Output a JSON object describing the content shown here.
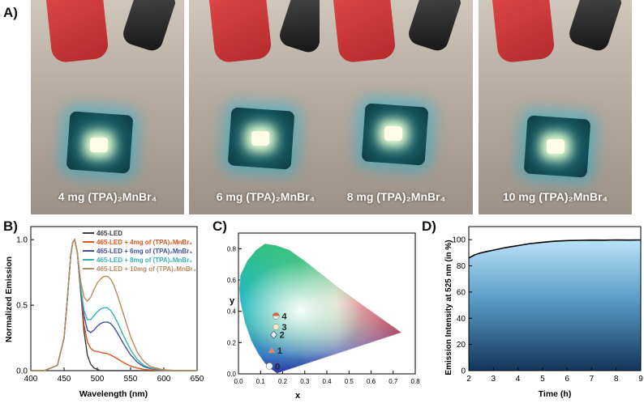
{
  "panel_labels": {
    "a": "A)",
    "b": "B)",
    "c": "C)",
    "d": "D)"
  },
  "photos": [
    {
      "caption": "4 mg (TPA)₂MnBr₄"
    },
    {
      "caption": "6 mg (TPA)₂MnBr₄"
    },
    {
      "caption": "8 mg (TPA)₂MnBr₄"
    },
    {
      "caption": "10 mg (TPA)₂MnBr₄"
    }
  ],
  "chart_data": [
    {
      "id": "B",
      "type": "line",
      "xlabel": "Wavelength (nm)",
      "ylabel": "Normalized Emission",
      "xlim": [
        400,
        650
      ],
      "ylim": [
        0,
        1.1
      ],
      "xticks": [
        400,
        450,
        500,
        550,
        600,
        650
      ],
      "yticks": [
        0.0,
        0.5,
        1.0
      ],
      "x": [
        400,
        420,
        440,
        450,
        455,
        460,
        463,
        466,
        470,
        475,
        480,
        485,
        490,
        495,
        500,
        505,
        510,
        515,
        520,
        525,
        530,
        540,
        550,
        560,
        570,
        580,
        600,
        620,
        650
      ],
      "series": [
        {
          "name": "465-LED",
          "color": "#3a3a3a",
          "values": [
            0,
            0,
            0.04,
            0.25,
            0.55,
            0.88,
            0.98,
            1.0,
            0.9,
            0.6,
            0.3,
            0.12,
            0.05,
            0.02,
            0.01,
            0,
            0,
            0,
            0,
            0,
            0,
            0,
            0,
            0,
            0,
            0,
            0,
            0,
            0
          ]
        },
        {
          "name": "465-LED + 4mg of (TPA)₂MnBr₄",
          "color": "#e0541c",
          "values": [
            0,
            0,
            0.04,
            0.25,
            0.55,
            0.88,
            0.98,
            1.0,
            0.9,
            0.6,
            0.35,
            0.22,
            0.17,
            0.15,
            0.145,
            0.14,
            0.135,
            0.13,
            0.12,
            0.105,
            0.09,
            0.06,
            0.035,
            0.02,
            0.01,
            0.005,
            0,
            0,
            0
          ]
        },
        {
          "name": "465-LED + 6mg of (TPA)₂MnBr₄",
          "color": "#3f4fa0",
          "values": [
            0,
            0,
            0.04,
            0.25,
            0.55,
            0.88,
            0.98,
            1.0,
            0.9,
            0.62,
            0.42,
            0.31,
            0.29,
            0.31,
            0.34,
            0.36,
            0.37,
            0.37,
            0.36,
            0.33,
            0.29,
            0.2,
            0.12,
            0.065,
            0.03,
            0.015,
            0.003,
            0,
            0
          ]
        },
        {
          "name": "465-LED + 8mg of (TPA)₂MnBr₄",
          "color": "#36b3b0",
          "values": [
            0,
            0,
            0.04,
            0.25,
            0.55,
            0.88,
            0.98,
            1.0,
            0.9,
            0.64,
            0.46,
            0.39,
            0.39,
            0.42,
            0.45,
            0.47,
            0.48,
            0.48,
            0.46,
            0.42,
            0.37,
            0.26,
            0.16,
            0.085,
            0.04,
            0.02,
            0.004,
            0,
            0
          ]
        },
        {
          "name": "465-LED + 10mg of (TPA)₂MnBr₄",
          "color": "#b98a5c",
          "values": [
            0,
            0,
            0.04,
            0.25,
            0.55,
            0.88,
            0.98,
            1.0,
            0.9,
            0.68,
            0.56,
            0.53,
            0.56,
            0.62,
            0.67,
            0.7,
            0.72,
            0.72,
            0.7,
            0.65,
            0.58,
            0.42,
            0.26,
            0.14,
            0.07,
            0.03,
            0.006,
            0,
            0
          ]
        }
      ]
    },
    {
      "id": "C",
      "type": "scatter",
      "xlabel": "x",
      "ylabel": "y",
      "xlim": [
        0,
        0.8
      ],
      "ylim": [
        0,
        0.9
      ],
      "xticks": [
        0.0,
        0.1,
        0.2,
        0.3,
        0.4,
        0.5,
        0.6,
        0.7,
        0.8
      ],
      "yticks": [
        0.0,
        0.2,
        0.4,
        0.6,
        0.8
      ],
      "points": [
        {
          "label": "0",
          "x": 0.14,
          "y": 0.05,
          "color": "#ffffff",
          "shape": "circle"
        },
        {
          "label": "1",
          "x": 0.15,
          "y": 0.15,
          "color": "#f08060",
          "shape": "triangle"
        },
        {
          "label": "2",
          "x": 0.16,
          "y": 0.25,
          "color": "#e8f4ff",
          "shape": "diamond"
        },
        {
          "label": "3",
          "x": 0.17,
          "y": 0.3,
          "color": "#f6e6c8",
          "shape": "hexagon"
        },
        {
          "label": "4",
          "x": 0.17,
          "y": 0.37,
          "color": "#c96a4a",
          "shape": "halfcircle"
        }
      ]
    },
    {
      "id": "D",
      "type": "area",
      "xlabel": "Time (h)",
      "ylabel": "Emission Intensity at 525 nm (in %)",
      "xlim": [
        2,
        9
      ],
      "ylim": [
        0,
        110
      ],
      "xticks": [
        2,
        3,
        4,
        5,
        6,
        7,
        8,
        9
      ],
      "yticks": [
        0,
        20,
        40,
        60,
        80,
        100
      ],
      "x": [
        2,
        2.25,
        2.5,
        2.75,
        3,
        3.5,
        4,
        4.5,
        5,
        5.5,
        6,
        6.5,
        7,
        7.5,
        8,
        8.5,
        9
      ],
      "values": [
        86,
        88.5,
        90,
        91,
        92,
        94,
        95.5,
        97,
        98,
        98.8,
        99.3,
        99.5,
        99.7,
        99.6,
        99.8,
        99.7,
        99.8
      ]
    }
  ]
}
